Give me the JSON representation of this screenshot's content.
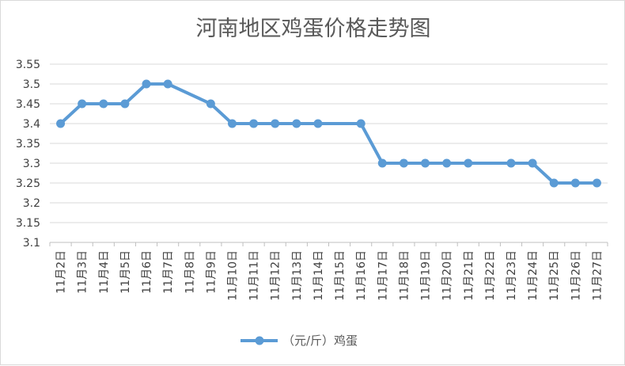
{
  "chart_data": {
    "type": "line",
    "title": "河南地区鸡蛋价格走势图",
    "xlabel": "",
    "ylabel": "",
    "ylim": [
      3.1,
      3.55
    ],
    "yticks": [
      "3.1",
      "3.15",
      "3.2",
      "3.25",
      "3.3",
      "3.35",
      "3.4",
      "3.45",
      "3.5",
      "3.55"
    ],
    "categories": [
      "11月2日",
      "11月3日",
      "11月4日",
      "11月5日",
      "11月6日",
      "11月7日",
      "11月8日",
      "11月9日",
      "11月10日",
      "11月11日",
      "11月12日",
      "11月13日",
      "11月14日",
      "11月15日",
      "11月16日",
      "11月17日",
      "11月18日",
      "11月19日",
      "11月20日",
      "11月21日",
      "11月22日",
      "11月23日",
      "11月24日",
      "11月25日",
      "11月26日",
      "11月27日"
    ],
    "series": [
      {
        "name": "（元/斤）鸡蛋",
        "color": "#5b9bd5",
        "values": [
          3.4,
          3.45,
          3.45,
          3.45,
          3.5,
          3.5,
          null,
          3.45,
          3.4,
          3.4,
          3.4,
          3.4,
          3.4,
          null,
          3.4,
          3.3,
          3.3,
          3.3,
          3.3,
          3.3,
          null,
          3.3,
          3.3,
          3.25,
          3.25,
          3.25
        ]
      }
    ],
    "grid": true,
    "legend_position": "bottom"
  }
}
